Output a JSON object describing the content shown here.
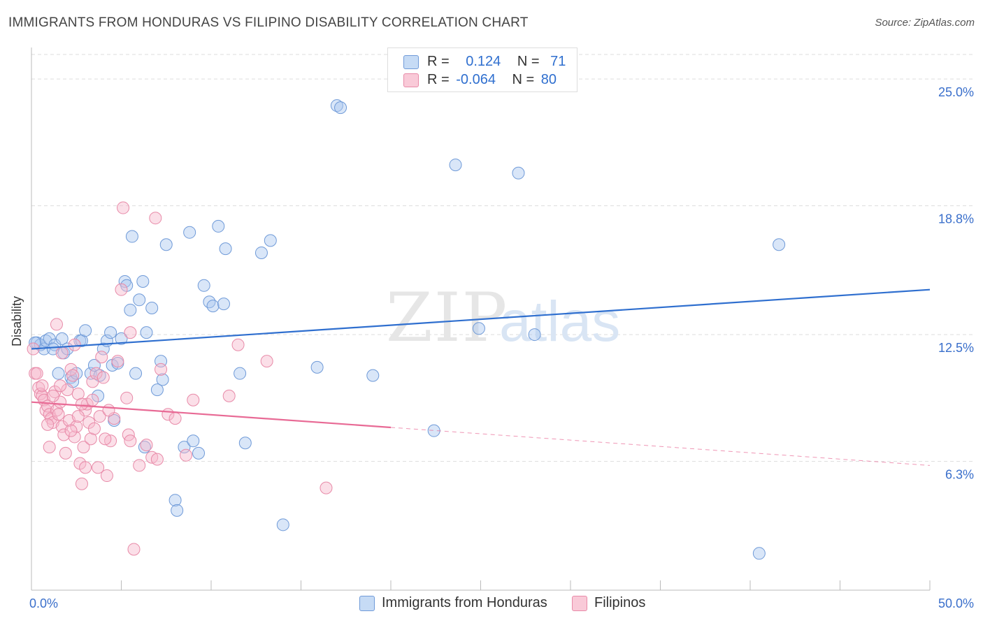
{
  "header": {
    "title": "IMMIGRANTS FROM HONDURAS VS FILIPINO DISABILITY CORRELATION CHART",
    "source": "Source: ZipAtlas.com"
  },
  "legend": {
    "r_label": "R =",
    "n_label": "N =",
    "series": [
      {
        "r": "0.124",
        "n": "71"
      },
      {
        "r": "-0.064",
        "n": "80"
      }
    ]
  },
  "bottom_legend": [
    "Immigrants from Honduras",
    "Filipinos"
  ],
  "colors": {
    "blue_fill": "#aac8ef",
    "blue_stroke": "#6f9ad8",
    "blue_line": "#2f6fcf",
    "pink_fill": "#f6b8cb",
    "pink_stroke": "#e88aa8",
    "pink_line": "#e86a95",
    "grid": "#dddddd",
    "tick_text": "#3a6fcb"
  },
  "watermark": {
    "zip": "ZIP",
    "atlas": "atlas"
  },
  "chart_data": {
    "type": "scatter",
    "title": "IMMIGRANTS FROM HONDURAS VS FILIPINO DISABILITY CORRELATION CHART",
    "xlabel": "",
    "ylabel": "Disability",
    "xlim": [
      0,
      50
    ],
    "ylim": [
      0,
      26.2
    ],
    "x_tick_labels": [
      "0.0%",
      "50.0%"
    ],
    "y_ticks": [
      6.3,
      12.5,
      18.8,
      25.0
    ],
    "y_tick_labels": [
      "6.3%",
      "12.5%",
      "18.8%",
      "25.0%"
    ],
    "grid": true,
    "legend_position": "top-center",
    "series": [
      {
        "name": "Immigrants from Honduras",
        "color": "blue",
        "trend": {
          "x0": 0,
          "y0": 11.8,
          "x1": 50,
          "y1": 14.7,
          "dashed_from": null
        },
        "points": [
          [
            0.3,
            12.1
          ],
          [
            0.5,
            12.0
          ],
          [
            0.7,
            11.8
          ],
          [
            0.8,
            12.2
          ],
          [
            1.0,
            12.3
          ],
          [
            1.3,
            12.0
          ],
          [
            1.5,
            10.6
          ],
          [
            1.7,
            12.3
          ],
          [
            1.8,
            11.6
          ],
          [
            2.0,
            11.8
          ],
          [
            2.2,
            10.4
          ],
          [
            2.3,
            10.2
          ],
          [
            2.5,
            10.6
          ],
          [
            2.7,
            12.2
          ],
          [
            2.8,
            12.2
          ],
          [
            3.0,
            12.7
          ],
          [
            3.3,
            10.6
          ],
          [
            3.5,
            11.0
          ],
          [
            3.7,
            9.5
          ],
          [
            3.8,
            10.5
          ],
          [
            4.0,
            11.8
          ],
          [
            4.2,
            12.2
          ],
          [
            4.4,
            12.6
          ],
          [
            4.5,
            11.0
          ],
          [
            4.6,
            8.3
          ],
          [
            4.8,
            11.1
          ],
          [
            5.0,
            12.3
          ],
          [
            5.2,
            15.1
          ],
          [
            5.3,
            14.9
          ],
          [
            5.5,
            13.7
          ],
          [
            5.6,
            17.3
          ],
          [
            5.8,
            10.6
          ],
          [
            6.0,
            14.2
          ],
          [
            6.2,
            15.1
          ],
          [
            6.3,
            7.0
          ],
          [
            6.4,
            12.6
          ],
          [
            6.7,
            13.8
          ],
          [
            7.0,
            9.8
          ],
          [
            7.2,
            11.2
          ],
          [
            7.3,
            10.3
          ],
          [
            7.5,
            16.9
          ],
          [
            8.0,
            4.4
          ],
          [
            8.1,
            3.9
          ],
          [
            8.5,
            7.0
          ],
          [
            8.8,
            17.5
          ],
          [
            9.0,
            7.3
          ],
          [
            9.3,
            6.7
          ],
          [
            9.6,
            14.9
          ],
          [
            9.9,
            14.1
          ],
          [
            10.1,
            13.9
          ],
          [
            10.4,
            17.8
          ],
          [
            10.7,
            14.0
          ],
          [
            10.8,
            16.7
          ],
          [
            11.6,
            10.6
          ],
          [
            11.9,
            7.2
          ],
          [
            12.8,
            16.5
          ],
          [
            13.3,
            17.1
          ],
          [
            14.0,
            3.2
          ],
          [
            15.9,
            10.9
          ],
          [
            17.0,
            23.7
          ],
          [
            17.2,
            23.6
          ],
          [
            19.0,
            10.5
          ],
          [
            22.4,
            7.8
          ],
          [
            23.6,
            20.8
          ],
          [
            24.9,
            12.8
          ],
          [
            27.1,
            20.4
          ],
          [
            28.0,
            12.5
          ],
          [
            40.5,
            1.8
          ],
          [
            41.6,
            16.9
          ],
          [
            0.2,
            12.1
          ],
          [
            1.2,
            11.8
          ]
        ]
      },
      {
        "name": "Filipinos",
        "color": "pink",
        "trend": {
          "x0": 0,
          "y0": 9.2,
          "x1": 50,
          "y1": 6.1,
          "dashed_from": 20.0
        },
        "points": [
          [
            0.1,
            11.8
          ],
          [
            0.2,
            10.6
          ],
          [
            0.3,
            10.6
          ],
          [
            0.4,
            9.9
          ],
          [
            0.5,
            9.6
          ],
          [
            0.6,
            9.5
          ],
          [
            0.7,
            9.3
          ],
          [
            0.8,
            8.8
          ],
          [
            0.9,
            9.0
          ],
          [
            1.0,
            8.6
          ],
          [
            1.1,
            8.4
          ],
          [
            1.2,
            8.2
          ],
          [
            1.3,
            9.7
          ],
          [
            1.4,
            8.8
          ],
          [
            1.5,
            8.6
          ],
          [
            1.6,
            9.2
          ],
          [
            1.7,
            8.0
          ],
          [
            1.8,
            7.6
          ],
          [
            1.9,
            6.7
          ],
          [
            2.0,
            9.8
          ],
          [
            2.1,
            8.3
          ],
          [
            2.2,
            10.8
          ],
          [
            2.3,
            10.5
          ],
          [
            2.4,
            7.5
          ],
          [
            2.5,
            8.0
          ],
          [
            2.6,
            9.6
          ],
          [
            2.7,
            6.2
          ],
          [
            2.8,
            5.2
          ],
          [
            2.9,
            7.0
          ],
          [
            3.0,
            8.8
          ],
          [
            3.1,
            9.1
          ],
          [
            3.2,
            8.2
          ],
          [
            3.3,
            7.4
          ],
          [
            3.4,
            10.2
          ],
          [
            3.5,
            7.9
          ],
          [
            3.6,
            10.6
          ],
          [
            3.7,
            6.0
          ],
          [
            3.8,
            8.5
          ],
          [
            3.9,
            11.4
          ],
          [
            4.0,
            10.4
          ],
          [
            4.2,
            5.6
          ],
          [
            4.4,
            7.3
          ],
          [
            4.6,
            8.4
          ],
          [
            4.8,
            11.2
          ],
          [
            5.0,
            14.7
          ],
          [
            5.1,
            18.7
          ],
          [
            5.3,
            9.4
          ],
          [
            5.4,
            7.6
          ],
          [
            5.5,
            7.3
          ],
          [
            5.7,
            2.0
          ],
          [
            6.0,
            6.1
          ],
          [
            6.4,
            7.1
          ],
          [
            6.7,
            6.5
          ],
          [
            6.9,
            18.2
          ],
          [
            7.2,
            10.8
          ],
          [
            7.6,
            8.6
          ],
          [
            8.0,
            8.4
          ],
          [
            8.6,
            6.6
          ],
          [
            9.0,
            9.3
          ],
          [
            11.0,
            9.5
          ],
          [
            11.5,
            12.0
          ],
          [
            13.1,
            11.2
          ],
          [
            16.4,
            5.0
          ],
          [
            0.6,
            10.0
          ],
          [
            1.4,
            13.0
          ],
          [
            1.7,
            11.6
          ],
          [
            2.4,
            12.0
          ],
          [
            2.8,
            9.1
          ],
          [
            3.0,
            6.0
          ],
          [
            4.1,
            7.4
          ],
          [
            4.3,
            8.8
          ],
          [
            0.9,
            8.1
          ],
          [
            1.2,
            9.5
          ],
          [
            1.6,
            10.0
          ],
          [
            2.2,
            7.8
          ],
          [
            2.6,
            8.5
          ],
          [
            3.4,
            9.3
          ],
          [
            5.5,
            12.6
          ],
          [
            7.0,
            6.4
          ],
          [
            1.0,
            7.0
          ]
        ]
      }
    ]
  }
}
